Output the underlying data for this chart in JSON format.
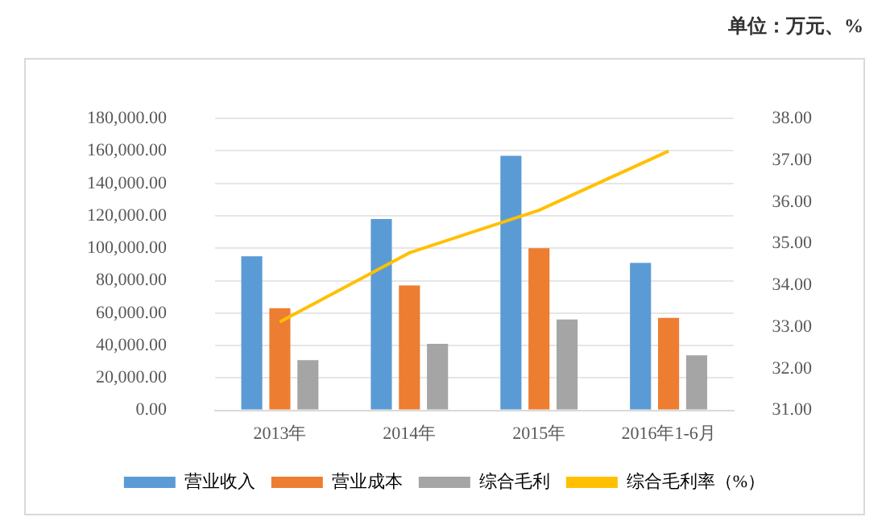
{
  "chart_data": {
    "type": "bar",
    "annotations": [
      "单位：万元、%"
    ],
    "categories": [
      "2013年",
      "2014年",
      "2015年",
      "2016年1-6月"
    ],
    "series": [
      {
        "name": "营业收入",
        "color": "#5b9bd5",
        "values": [
          95000,
          118000,
          157000,
          91000
        ]
      },
      {
        "name": "营业成本",
        "color": "#ed7d31",
        "values": [
          63000,
          77000,
          100000,
          57000
        ]
      },
      {
        "name": "综合毛利",
        "color": "#a5a5a5",
        "values": [
          31000,
          41000,
          56000,
          34000
        ]
      },
      {
        "name": "综合毛利率（%）",
        "type": "line",
        "axis": "y2",
        "color": "#ffc000",
        "values": [
          33.12,
          34.78,
          35.8,
          37.22
        ]
      }
    ],
    "ylim": [
      0,
      180000
    ],
    "yticks": [
      {
        "value": 0,
        "label": "0.00"
      },
      {
        "value": 20000,
        "label": "20,000.00"
      },
      {
        "value": 40000,
        "label": "40,000.00"
      },
      {
        "value": 60000,
        "label": "60,000.00"
      },
      {
        "value": 80000,
        "label": "80,000.00"
      },
      {
        "value": 100000,
        "label": "100,000.00"
      },
      {
        "value": 120000,
        "label": "120,000.00"
      },
      {
        "value": 140000,
        "label": "140,000.00"
      },
      {
        "value": 160000,
        "label": "160,000.00"
      },
      {
        "value": 180000,
        "label": "180,000.00"
      }
    ],
    "y2lim": [
      31,
      38
    ],
    "y2ticks": [
      {
        "value": 31,
        "label": "31.00"
      },
      {
        "value": 32,
        "label": "32.00"
      },
      {
        "value": 33,
        "label": "33.00"
      },
      {
        "value": 34,
        "label": "34.00"
      },
      {
        "value": 35,
        "label": "35.00"
      },
      {
        "value": 36,
        "label": "36.00"
      },
      {
        "value": 37,
        "label": "37.00"
      },
      {
        "value": 38,
        "label": "38.00"
      }
    ],
    "grid": "y",
    "legend": "bottom",
    "marker": "none"
  }
}
